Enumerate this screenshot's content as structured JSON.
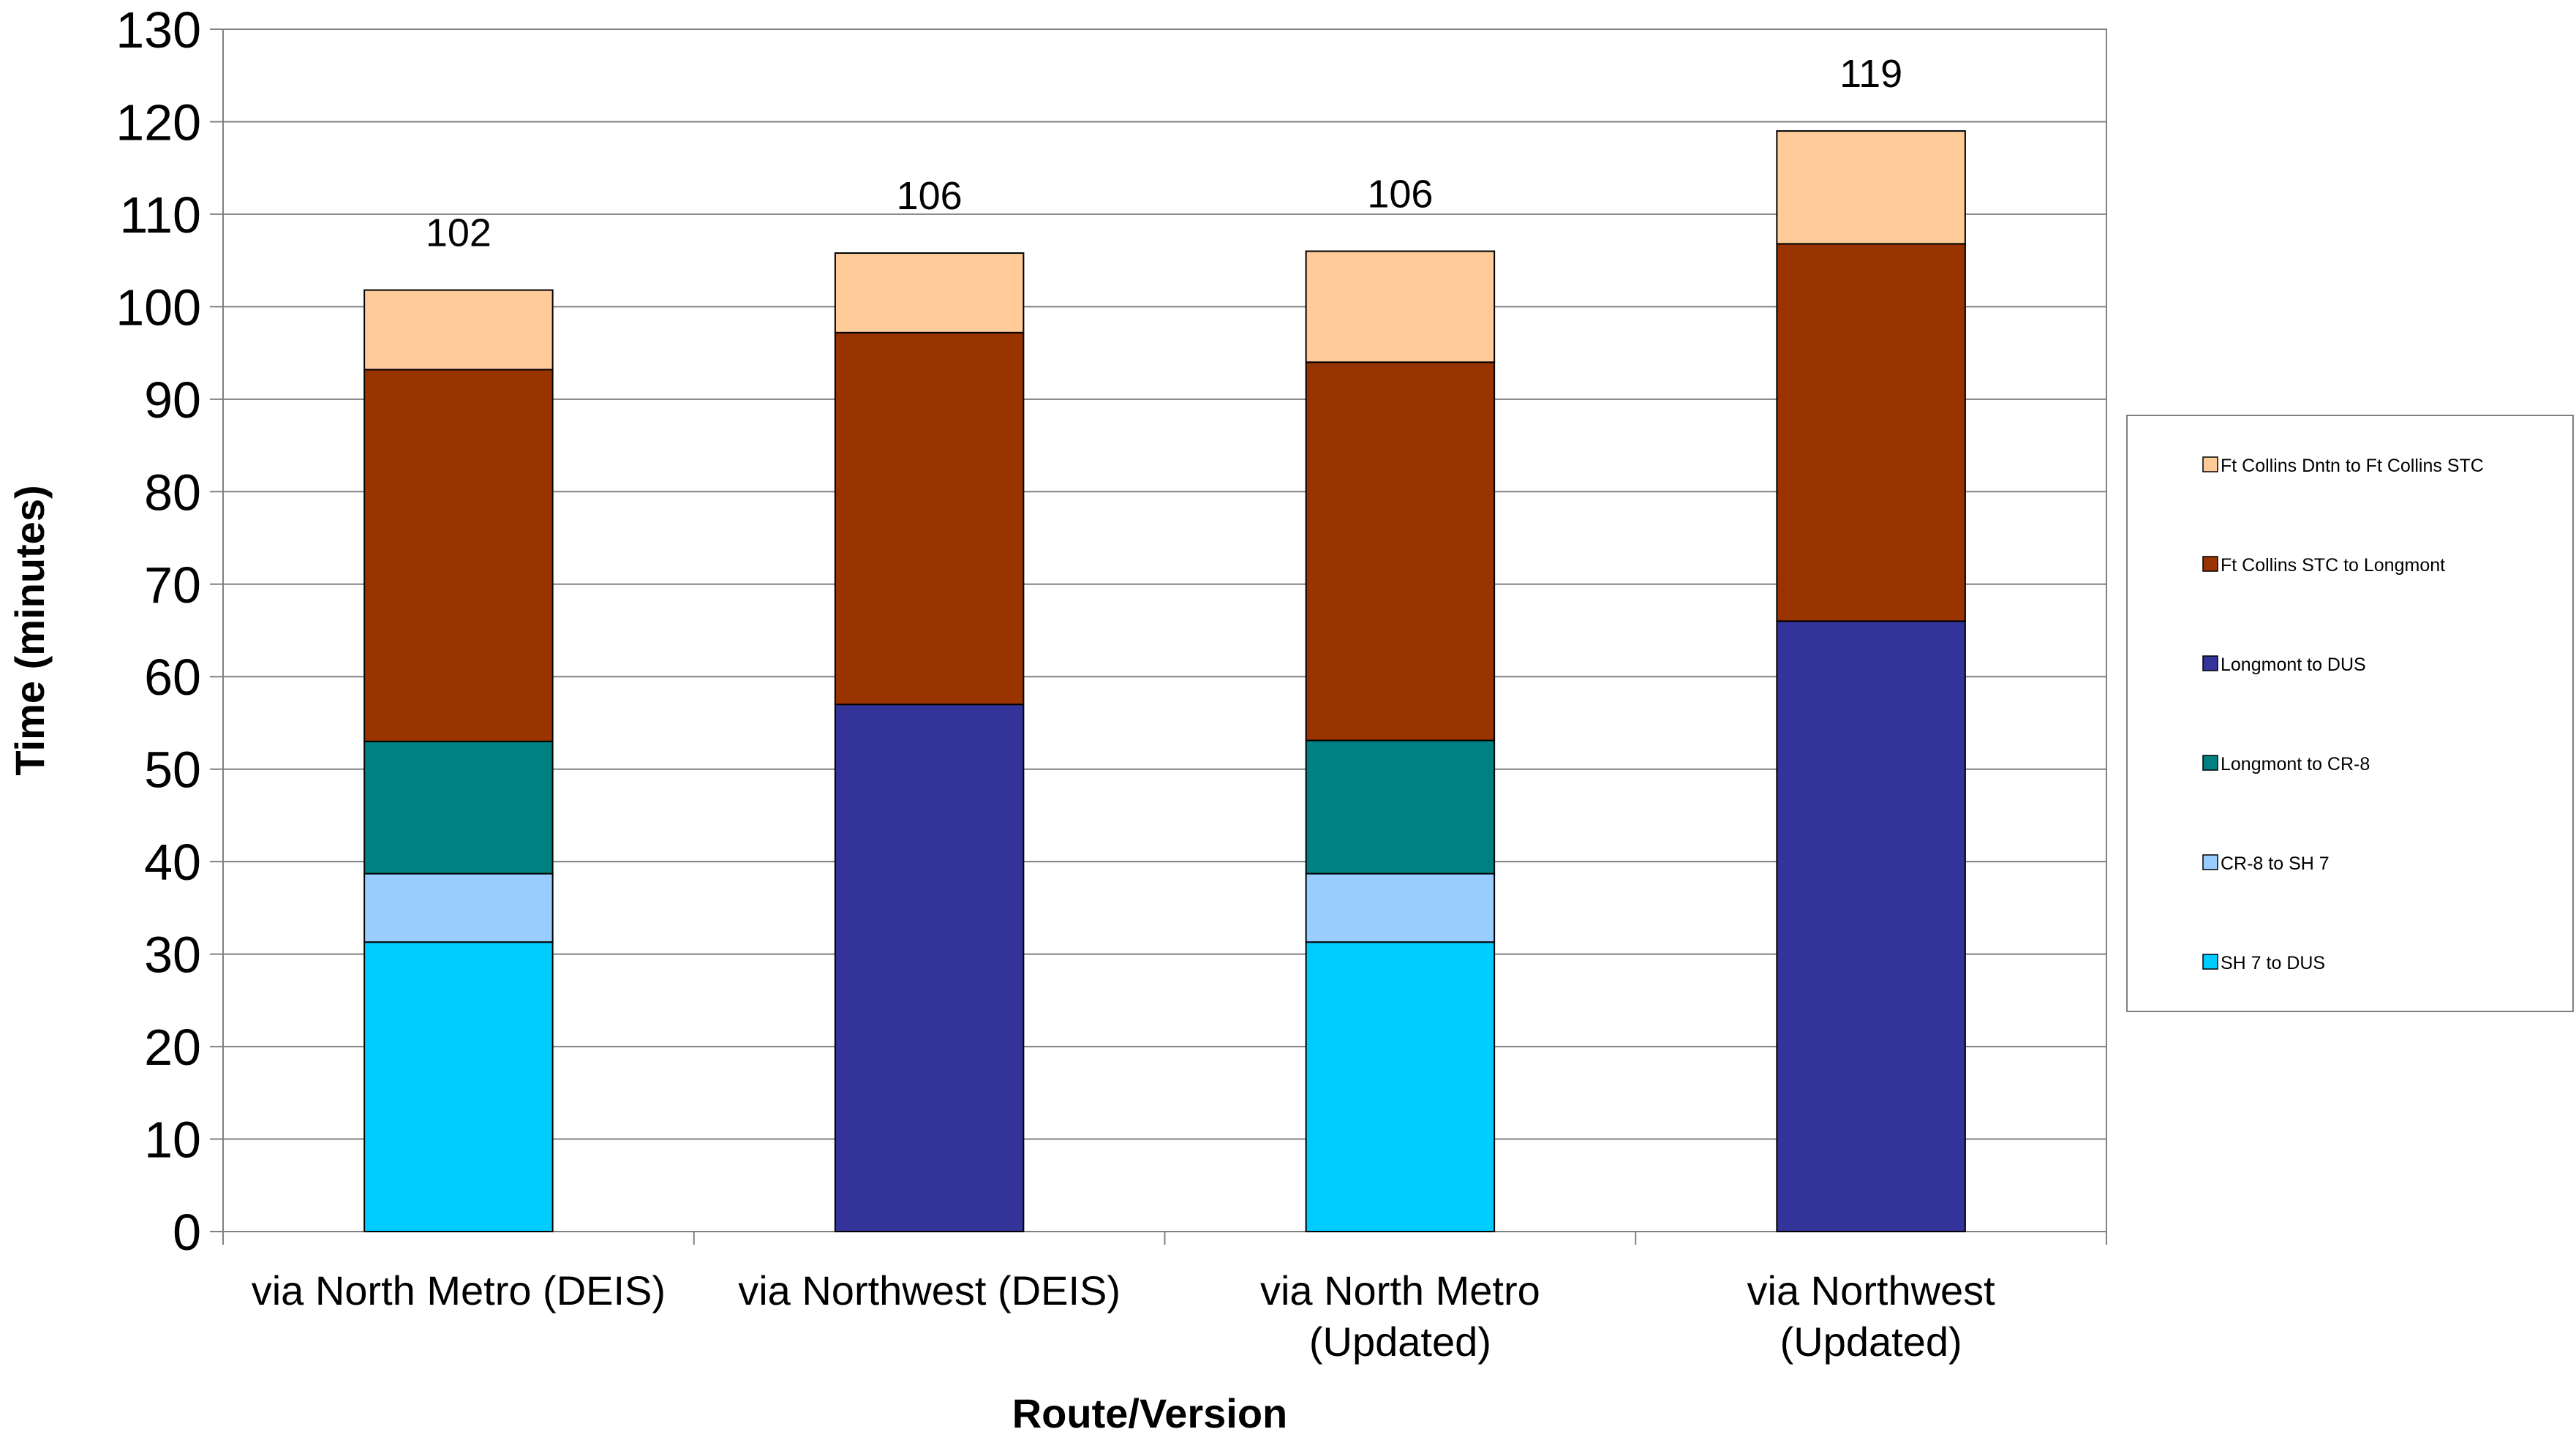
{
  "chart_data": {
    "type": "bar",
    "stacked": true,
    "ylabel": "Time (minutes)",
    "xlabel": "Route/Version",
    "ylim": [
      0,
      130
    ],
    "ytick_step": 10,
    "grid": true,
    "legend_position": "right",
    "categories": [
      [
        "via North Metro  (DEIS)"
      ],
      [
        "via Northwest (DEIS)"
      ],
      [
        "via North Metro",
        "(Updated)"
      ],
      [
        "via Northwest",
        "(Updated)"
      ]
    ],
    "totals": [
      102,
      106,
      106,
      119
    ],
    "series": [
      {
        "name": "SH 7 to DUS",
        "color": "#00CCFF",
        "values": [
          31.3,
          0,
          31.3,
          0
        ]
      },
      {
        "name": "CR-8 to SH 7",
        "color": "#99CCFF",
        "values": [
          7.4,
          0,
          7.4,
          0
        ]
      },
      {
        "name": "Longmont to CR-8",
        "color": "#008080",
        "values": [
          14.3,
          0,
          14.4,
          0
        ]
      },
      {
        "name": "Longmont to DUS",
        "color": "#333399",
        "values": [
          0,
          57,
          0,
          66
        ]
      },
      {
        "name": "Ft Collins STC to Longmont",
        "color": "#993300",
        "values": [
          40.2,
          40.2,
          40.9,
          40.8
        ]
      },
      {
        "name": "Ft Collins Dntn to Ft Collins STC",
        "color": "#FFCC99",
        "values": [
          8.6,
          8.6,
          12.0,
          12.2
        ]
      }
    ]
  }
}
